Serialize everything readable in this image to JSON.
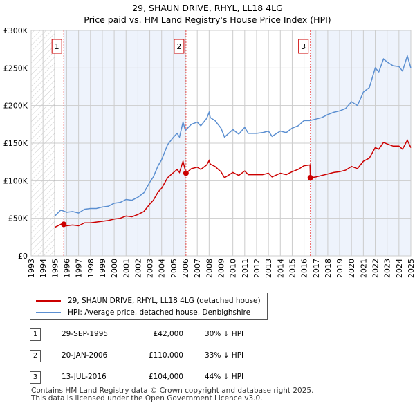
{
  "title_line1": "29, SHAUN DRIVE, RHYL, LL18 4LG",
  "title_line2": "Price paid vs. HM Land Registry's House Price Index (HPI)",
  "chart_data": {
    "type": "line",
    "ylim": [
      0,
      300000
    ],
    "xlim": [
      1993,
      2025
    ],
    "yticks": [
      {
        "v": 0,
        "label": "£0"
      },
      {
        "v": 50000,
        "label": "£50K"
      },
      {
        "v": 100000,
        "label": "£100K"
      },
      {
        "v": 150000,
        "label": "£150K"
      },
      {
        "v": 200000,
        "label": "£200K"
      },
      {
        "v": 250000,
        "label": "£250K"
      },
      {
        "v": 300000,
        "label": "£300K"
      }
    ],
    "xticks": [
      "1993",
      "1994",
      "1995",
      "1996",
      "1997",
      "1998",
      "1999",
      "2000",
      "2001",
      "2002",
      "2003",
      "2004",
      "2005",
      "2006",
      "2007",
      "2008",
      "2009",
      "2010",
      "2011",
      "2012",
      "2013",
      "2014",
      "2015",
      "2016",
      "2017",
      "2018",
      "2019",
      "2020",
      "2021",
      "2022",
      "2023",
      "2024",
      "2025"
    ],
    "grid": true,
    "series": [
      {
        "name": "HPI: Average price, detached house, Denbighshire",
        "color": "#5b8fd1",
        "x": [
          1995,
          1995.5,
          1996,
          1996.5,
          1997,
          1997.5,
          1998,
          1998.5,
          1999,
          1999.5,
          2000,
          2000.5,
          2001,
          2001.5,
          2002,
          2002.5,
          2003,
          2003.3,
          2003.7,
          2004,
          2004.5,
          2005,
          2005.3,
          2005.5,
          2005.8,
          2006,
          2006.5,
          2007,
          2007.3,
          2007.8,
          2008,
          2008.1,
          2008.5,
          2009,
          2009.3,
          2010,
          2010.5,
          2011,
          2011.3,
          2012,
          2012.5,
          2013,
          2013.3,
          2014,
          2014.5,
          2015,
          2015.5,
          2016,
          2016.5,
          2017,
          2017.5,
          2018,
          2018.5,
          2019,
          2019.5,
          2020,
          2020.5,
          2021,
          2021.5,
          2022,
          2022.3,
          2022.7,
          2023,
          2023.5,
          2024,
          2024.3,
          2024.7,
          2025
        ],
        "y": [
          53,
          61,
          58,
          59,
          57,
          62,
          63,
          63,
          65,
          66,
          70,
          71,
          75,
          74,
          78,
          84,
          98,
          105,
          120,
          128,
          148,
          158,
          163,
          158,
          178,
          167,
          175,
          178,
          173,
          183,
          191,
          184,
          180,
          170,
          158,
          168,
          162,
          171,
          163,
          163,
          164,
          166,
          159,
          166,
          164,
          170,
          173,
          180,
          180,
          182,
          184,
          188,
          191,
          193,
          196,
          205,
          200,
          218,
          224,
          250,
          245,
          262,
          258,
          253,
          252,
          246,
          266,
          250
        ]
      },
      {
        "name": "29, SHAUN DRIVE, RHYL, LL18 4LG (detached house)",
        "color": "#cc0000",
        "x": [
          1995,
          1995.5,
          1995.75,
          1996,
          1996.5,
          1997,
          1997.5,
          1998,
          1998.5,
          1999,
          1999.5,
          2000,
          2000.5,
          2001,
          2001.5,
          2002,
          2002.5,
          2003,
          2003.3,
          2003.7,
          2004,
          2004.5,
          2005,
          2005.3,
          2005.5,
          2005.8,
          2006.05,
          2006.5,
          2007,
          2007.3,
          2007.8,
          2008,
          2008.1,
          2008.5,
          2009,
          2009.3,
          2010,
          2010.5,
          2011,
          2011.3,
          2012,
          2012.5,
          2013,
          2013.3,
          2014,
          2014.5,
          2015,
          2015.5,
          2016,
          2016.5,
          2016.53,
          2017,
          2017.5,
          2018,
          2018.5,
          2019,
          2019.5,
          2020,
          2020.5,
          2021,
          2021.5,
          2022,
          2022.3,
          2022.7,
          2023,
          2023.5,
          2024,
          2024.3,
          2024.7,
          2025
        ],
        "y": [
          38,
          42,
          42,
          40,
          41,
          40,
          44,
          44,
          45,
          46,
          47,
          49,
          50,
          53,
          52,
          55,
          59,
          69,
          74,
          85,
          90,
          104,
          111,
          115,
          111,
          126,
          110,
          116,
          118,
          115,
          121,
          127,
          122,
          119,
          112,
          104,
          111,
          107,
          113,
          108,
          108,
          108,
          110,
          105,
          110,
          108,
          112,
          115,
          120,
          121,
          104,
          105,
          107,
          109,
          111,
          112,
          114,
          119,
          116,
          126,
          130,
          144,
          142,
          151,
          149,
          146,
          146,
          142,
          154,
          144
        ]
      }
    ],
    "y_unit": "thousands GBP",
    "sales": [
      {
        "n": "1",
        "x": 1995.75,
        "y": 42
      },
      {
        "n": "2",
        "x": 2006.05,
        "y": 110
      },
      {
        "n": "3",
        "x": 2016.53,
        "y": 104
      }
    ]
  },
  "legend": [
    "29, SHAUN DRIVE, RHYL, LL18 4LG (detached house)",
    "HPI: Average price, detached house, Denbighshire"
  ],
  "table": [
    {
      "n": "1",
      "date": "29-SEP-1995",
      "price": "£42,000",
      "hpi": "30% ↓ HPI"
    },
    {
      "n": "2",
      "date": "20-JAN-2006",
      "price": "£110,000",
      "hpi": "33% ↓ HPI"
    },
    {
      "n": "3",
      "date": "13-JUL-2016",
      "price": "£104,000",
      "hpi": "44% ↓ HPI"
    }
  ],
  "footer": [
    "Contains HM Land Registry data © Crown copyright and database right 2025.",
    "This data is licensed under the Open Government Licence v3.0."
  ]
}
